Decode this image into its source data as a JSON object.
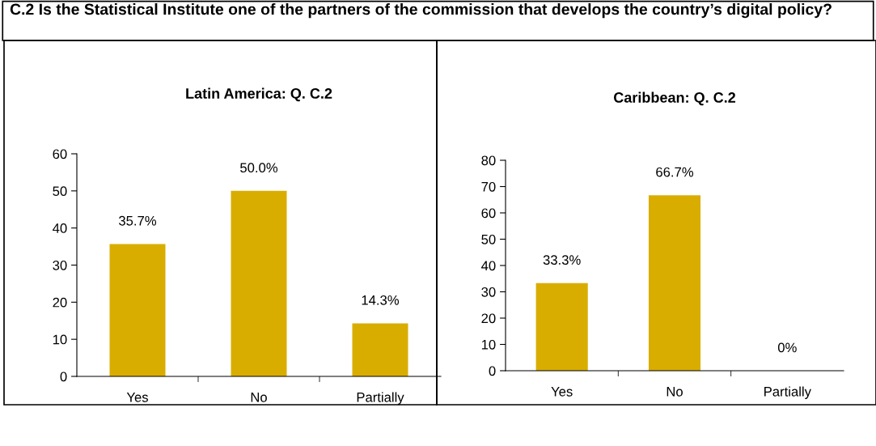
{
  "chart_data": [
    {
      "type": "bar",
      "title": "Latin America: Q. C.2",
      "annotations": [
        "C.2 Is the Statistical Institute one of the partners of the commission that develops the country’s digital policy?"
      ],
      "categories": [
        "Yes",
        "No",
        "Partially"
      ],
      "values": [
        35.7,
        50.0,
        14.3
      ],
      "value_labels": [
        "35.7%",
        "50.0%",
        "14.3%"
      ],
      "color": "#d9ad00",
      "ylim": [
        0,
        60
      ],
      "yticks": [
        0,
        10,
        20,
        30,
        40,
        50,
        60
      ],
      "grid": false,
      "legend": false
    },
    {
      "type": "bar",
      "title": "Caribbean: Q. C.2",
      "categories": [
        "Yes",
        "No",
        "Partially"
      ],
      "values": [
        33.3,
        66.7,
        0
      ],
      "value_labels": [
        "33.3%",
        "66.7%",
        "0%"
      ],
      "color": "#d9ad00",
      "ylim": [
        0,
        80
      ],
      "yticks": [
        0,
        10,
        20,
        30,
        40,
        50,
        60,
        70,
        80
      ],
      "grid": false,
      "legend": false
    }
  ]
}
